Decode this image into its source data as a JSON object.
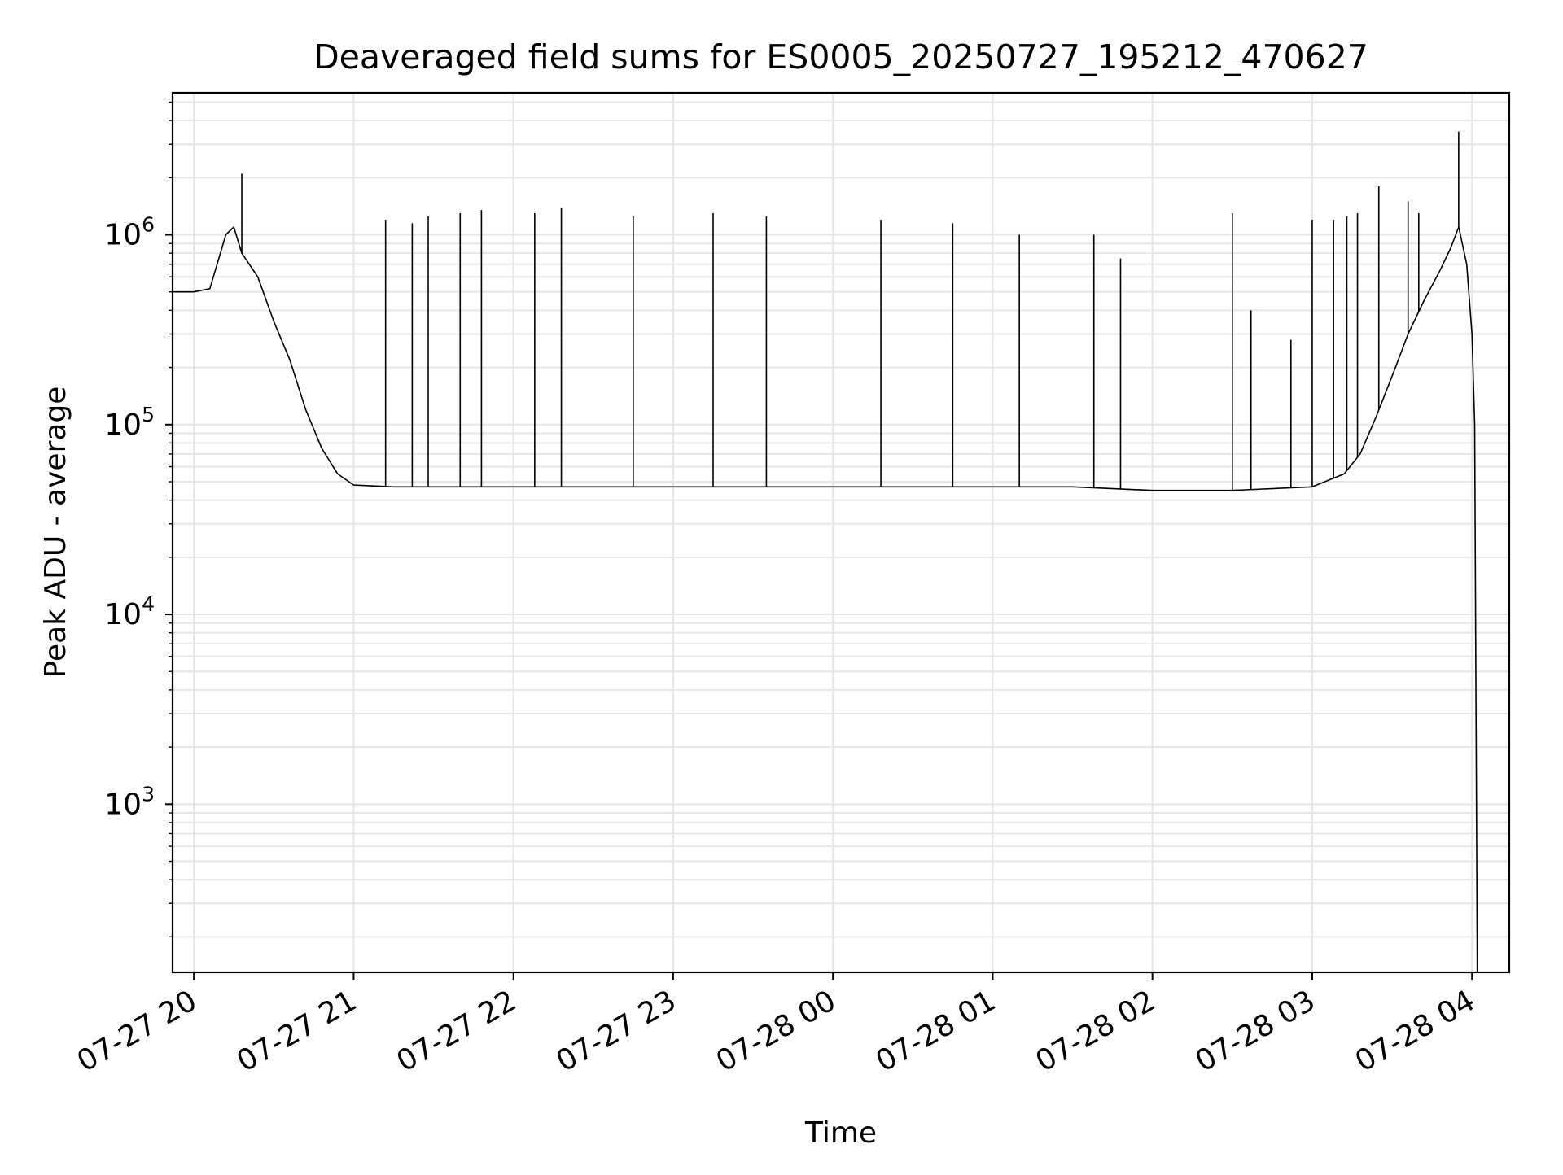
{
  "chart_data": {
    "type": "line",
    "title": "Deaveraged field sums for ES0005_20250727_195212_470627",
    "xlabel": "Time",
    "ylabel": "Peak ADU - average",
    "yscale": "log",
    "ylim": [
      130,
      5600000
    ],
    "xlim": [
      "2025-07-27 19:52",
      "2025-07-28 04:14"
    ],
    "grid": true,
    "x_ticks": [
      "07-27 20",
      "07-27 21",
      "07-27 22",
      "07-27 23",
      "07-28 00",
      "07-28 01",
      "07-28 02",
      "07-28 03",
      "07-28 04"
    ],
    "y_ticks": [
      {
        "value": 1000,
        "base": "10",
        "exp": "3"
      },
      {
        "value": 10000,
        "base": "10",
        "exp": "4"
      },
      {
        "value": 100000,
        "base": "10",
        "exp": "5"
      },
      {
        "value": 1000000,
        "base": "10",
        "exp": "6"
      }
    ],
    "series": [
      {
        "color": "#000000",
        "x": [
          "2025-07-27 19:52",
          "2025-07-27 20:00",
          "2025-07-27 20:06",
          "2025-07-27 20:12",
          "2025-07-27 20:15",
          "2025-07-27 20:18",
          "2025-07-27 20:24",
          "2025-07-27 20:30",
          "2025-07-27 20:36",
          "2025-07-27 20:42",
          "2025-07-27 20:48",
          "2025-07-27 20:54",
          "2025-07-27 21:00",
          "2025-07-27 21:15",
          "2025-07-27 21:30",
          "2025-07-27 22:00",
          "2025-07-27 22:30",
          "2025-07-27 23:00",
          "2025-07-27 23:30",
          "2025-07-28 00:00",
          "2025-07-28 00:30",
          "2025-07-28 01:00",
          "2025-07-28 01:30",
          "2025-07-28 02:00",
          "2025-07-28 02:30",
          "2025-07-28 03:00",
          "2025-07-28 03:12",
          "2025-07-28 03:18",
          "2025-07-28 03:24",
          "2025-07-28 03:30",
          "2025-07-28 03:36",
          "2025-07-28 03:42",
          "2025-07-28 03:48",
          "2025-07-28 03:52",
          "2025-07-28 03:55",
          "2025-07-28 03:58",
          "2025-07-28 04:00",
          "2025-07-28 04:01",
          "2025-07-28 04:02"
        ],
        "y": [
          500000,
          500000,
          520000,
          1000000,
          1100000,
          800000,
          600000,
          350000,
          220000,
          120000,
          75000,
          55000,
          48000,
          47000,
          47000,
          47000,
          47000,
          47000,
          47000,
          47000,
          47000,
          47000,
          47000,
          45000,
          45000,
          47000,
          55000,
          70000,
          110000,
          180000,
          300000,
          450000,
          650000,
          850000,
          1100000,
          700000,
          300000,
          100000,
          130
        ]
      }
    ],
    "spikes": [
      {
        "x": "2025-07-27 20:18",
        "y": 2100000
      },
      {
        "x": "2025-07-27 21:12",
        "y": 1200000
      },
      {
        "x": "2025-07-27 21:22",
        "y": 1150000
      },
      {
        "x": "2025-07-27 21:28",
        "y": 1250000
      },
      {
        "x": "2025-07-27 21:40",
        "y": 1300000
      },
      {
        "x": "2025-07-27 21:48",
        "y": 1350000
      },
      {
        "x": "2025-07-27 22:08",
        "y": 1300000
      },
      {
        "x": "2025-07-27 22:18",
        "y": 1380000
      },
      {
        "x": "2025-07-27 22:45",
        "y": 1250000
      },
      {
        "x": "2025-07-27 23:15",
        "y": 1300000
      },
      {
        "x": "2025-07-27 23:35",
        "y": 1250000
      },
      {
        "x": "2025-07-28 00:18",
        "y": 1200000
      },
      {
        "x": "2025-07-28 00:45",
        "y": 1150000
      },
      {
        "x": "2025-07-28 01:10",
        "y": 1000000
      },
      {
        "x": "2025-07-28 01:38",
        "y": 1000000
      },
      {
        "x": "2025-07-28 01:48",
        "y": 750000
      },
      {
        "x": "2025-07-28 02:30",
        "y": 1300000
      },
      {
        "x": "2025-07-28 02:37",
        "y": 400000
      },
      {
        "x": "2025-07-28 02:52",
        "y": 280000
      },
      {
        "x": "2025-07-28 03:00",
        "y": 1200000
      },
      {
        "x": "2025-07-28 03:08",
        "y": 1200000
      },
      {
        "x": "2025-07-28 03:13",
        "y": 1250000
      },
      {
        "x": "2025-07-28 03:17",
        "y": 1300000
      },
      {
        "x": "2025-07-28 03:25",
        "y": 1800000
      },
      {
        "x": "2025-07-28 03:36",
        "y": 1500000
      },
      {
        "x": "2025-07-28 03:40",
        "y": 1300000
      },
      {
        "x": "2025-07-28 03:55",
        "y": 3500000
      }
    ]
  }
}
